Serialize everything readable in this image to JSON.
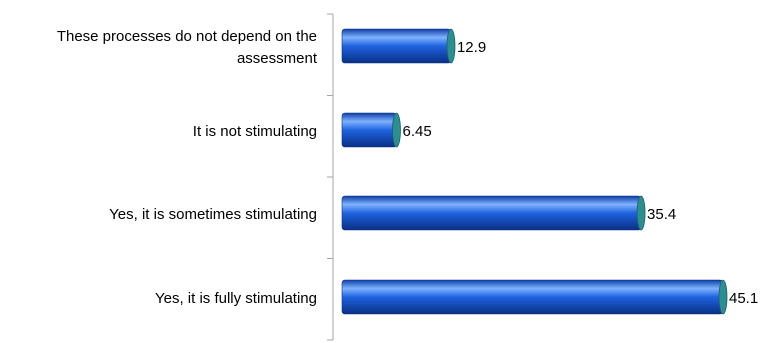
{
  "chart_data": {
    "type": "bar",
    "orientation": "horizontal",
    "categories": [
      [
        "These processes do not depend on the",
        "assessment"
      ],
      [
        "It is not stimulating"
      ],
      [
        "Yes, it is sometimes stimulating"
      ],
      [
        "Yes, it is fully stimulating"
      ]
    ],
    "values": [
      12.9,
      6.45,
      35.4,
      45.1
    ],
    "value_labels": [
      "12.9",
      "6.45",
      "35.4",
      "45.1"
    ],
    "xlim": [
      0,
      45.1
    ],
    "grid": false,
    "legend": "none",
    "bar_style": "3d-cylinder",
    "colors": {
      "bar_dark": "#0d3fa6",
      "bar_mid": "#1f63e0",
      "bar_light": "#7fb2ff",
      "bar_end": "#2b8f8f",
      "axis": "#a6a6a6"
    }
  }
}
